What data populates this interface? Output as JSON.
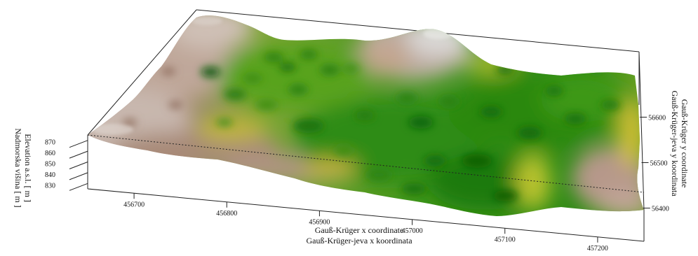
{
  "chart_data": {
    "type": "surface-3d",
    "x_axis": {
      "label_line1": "Gauß-Krüger x coordinate",
      "label_line2": "Gauß-Krüger-jeva x koordinata",
      "ticks": [
        "456700",
        "456800",
        "456900",
        "457000",
        "457100",
        "457200"
      ],
      "range": [
        456650,
        457250
      ]
    },
    "y_axis": {
      "label_line1": "Gauß-Krüger y coordinate",
      "label_line2": "Gauß-Krüger-jeva y koordinata",
      "ticks": [
        "56400",
        "56500",
        "56600"
      ],
      "range": [
        56350,
        56650
      ]
    },
    "z_axis": {
      "label_line1": "Elevation a.s.l. [ m ]",
      "label_line2": "Nadmorska višina [ m ]",
      "ticks": [
        "830",
        "840",
        "850",
        "860",
        "870"
      ],
      "range": [
        825,
        875
      ]
    },
    "surface": {
      "colormap": [
        "#0b6e0b",
        "#3c9a17",
        "#79b521",
        "#c9b03a",
        "#a7836a",
        "#b49a8c",
        "#d9d4d2"
      ],
      "low_color": "#0b6e0b",
      "high_color": "#dcdad8"
    }
  }
}
